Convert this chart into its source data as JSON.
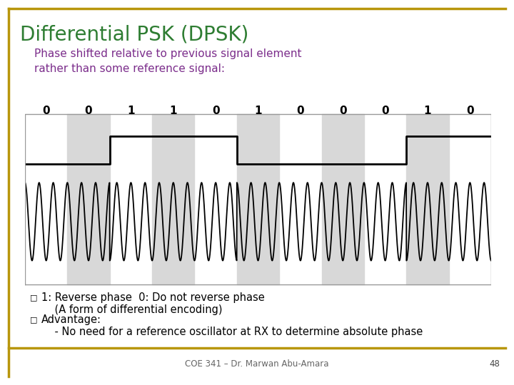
{
  "title": "Differential PSK (DPSK)",
  "subtitle": "Phase shifted relative to previous signal element\nrather than some reference signal:",
  "title_color": "#2E7D32",
  "subtitle_color": "#7B2D8B",
  "bits": [
    0,
    0,
    1,
    1,
    0,
    1,
    0,
    0,
    0,
    1,
    0
  ],
  "sq_high_bits": [
    0,
    0,
    1,
    1,
    1,
    0,
    0,
    0,
    0,
    1,
    1
  ],
  "bullet1_line1": "1: Reverse phase  0: Do not reverse phase",
  "bullet1_line2": "    (A form of differential encoding)",
  "bullet2": "Advantage:",
  "bullet3": "    - No need for a reference oscillator at RX to determine absolute phase",
  "footer": "COE 341 – Dr. Marwan Abu-Amara",
  "page_num": "48",
  "border_color": "#B8960C",
  "background_color": "#FFFFFF",
  "signal_bg_grey": "#D8D8D8",
  "carrier_freq": 3,
  "samples_per_bit": 300,
  "amplitude": 1.0
}
